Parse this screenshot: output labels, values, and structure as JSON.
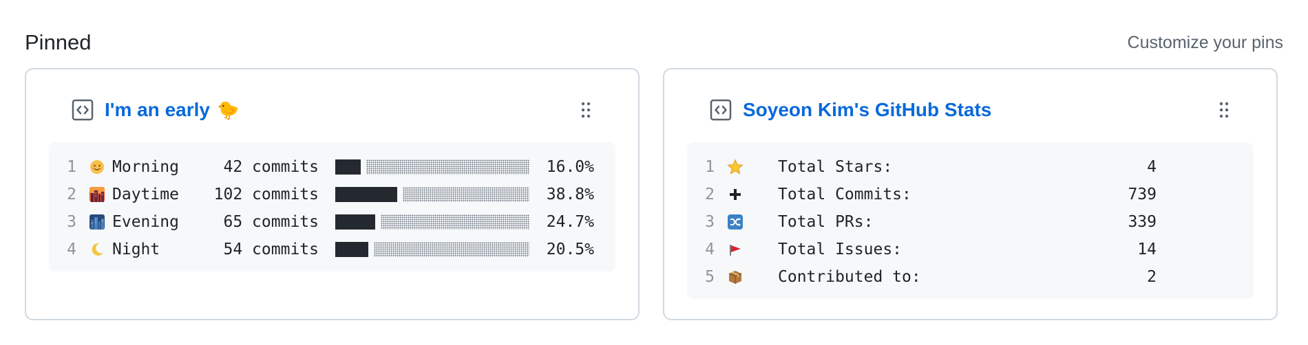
{
  "header": {
    "title": "Pinned",
    "customize_label": "Customize your pins"
  },
  "cards": [
    {
      "title": "I'm an early",
      "title_emoji": "🐤",
      "rows": [
        {
          "line": "1",
          "emoji": "☺",
          "period": "Morning",
          "commits": "42 commits",
          "percent_value": 16.0,
          "percent": "16.0%"
        },
        {
          "line": "2",
          "emoji": "city-dusk",
          "period": "Daytime",
          "commits": "102 commits",
          "percent_value": 38.8,
          "percent": "38.8%"
        },
        {
          "line": "3",
          "emoji": "night-city",
          "period": "Evening",
          "commits": "65 commits",
          "percent_value": 24.7,
          "percent": "24.7%"
        },
        {
          "line": "4",
          "emoji": "crescent-moon",
          "period": "Night",
          "commits": "54 commits",
          "percent_value": 20.5,
          "percent": "20.5%"
        }
      ]
    },
    {
      "title": "Soyeon Kim's GitHub Stats",
      "rows": [
        {
          "line": "1",
          "emoji": "star",
          "label": "Total Stars:",
          "value": "4"
        },
        {
          "line": "2",
          "emoji": "plus",
          "label": "Total Commits:",
          "value": "739"
        },
        {
          "line": "3",
          "emoji": "shuffle",
          "label": "Total PRs:",
          "value": "339"
        },
        {
          "line": "4",
          "emoji": "red-flag",
          "label": "Total Issues:",
          "value": "14"
        },
        {
          "line": "5",
          "emoji": "package",
          "label": "Contributed to:",
          "value": "2"
        }
      ]
    }
  ],
  "colors": {
    "link": "#0969da",
    "bar": "#24292f",
    "border": "#d1d9e0",
    "code_bg": "#f6f8fa"
  }
}
